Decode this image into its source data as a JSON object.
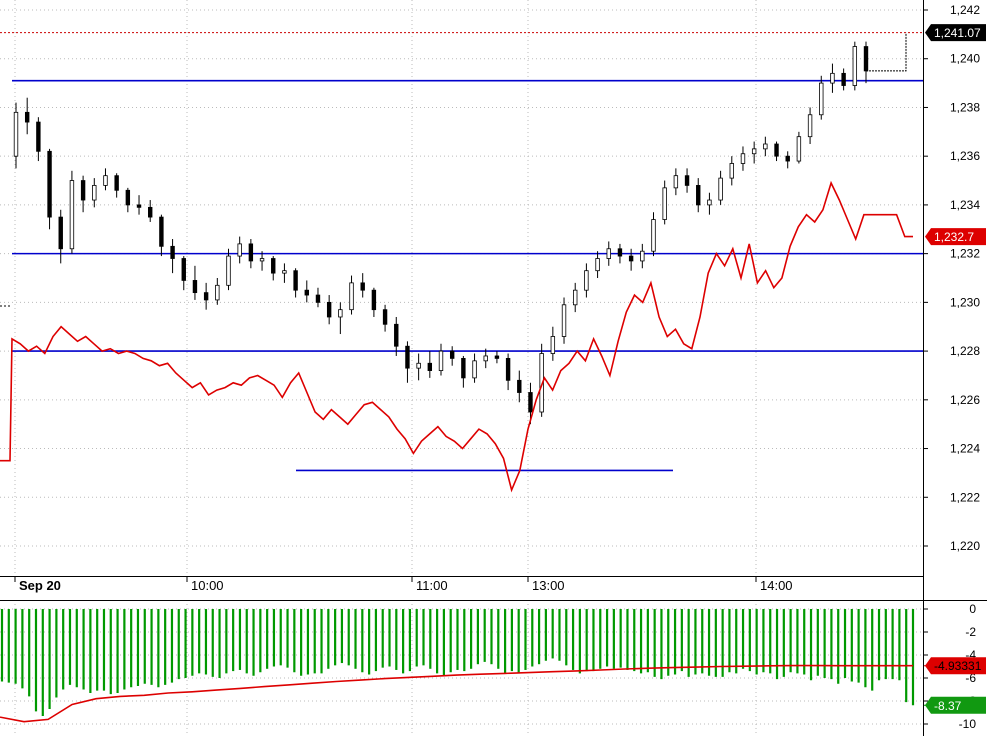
{
  "chart_data": [
    {
      "type": "candlestick",
      "x_ticks": [
        "Sep 20",
        "10:00",
        "11:00",
        "13:00",
        "14:00"
      ],
      "y_ticks": [
        "1,220",
        "1,222",
        "1,224",
        "1,226",
        "1,228",
        "1,230",
        "1,232",
        "1,234",
        "1,236",
        "1,238",
        "1,240",
        "1,242"
      ],
      "ylim": [
        1218.8,
        1243.0
      ],
      "grid": true,
      "price_labels": {
        "last": "1,241.07",
        "line": "1,232.7"
      },
      "series": [
        {
          "kind": "candles",
          "color": "#000000",
          "ohlc": [
            [
              1236.0,
              1238.2,
              1235.5,
              1237.8
            ],
            [
              1237.8,
              1238.4,
              1236.9,
              1237.4
            ],
            [
              1237.4,
              1237.6,
              1235.8,
              1236.2
            ],
            [
              1236.2,
              1236.3,
              1233.0,
              1233.5
            ],
            [
              1233.5,
              1233.8,
              1231.6,
              1232.2
            ],
            [
              1232.2,
              1235.4,
              1232.0,
              1235.0
            ],
            [
              1235.0,
              1235.2,
              1233.7,
              1234.2
            ],
            [
              1234.2,
              1235.1,
              1233.9,
              1234.8
            ],
            [
              1234.8,
              1235.5,
              1234.6,
              1235.2
            ],
            [
              1235.2,
              1235.3,
              1234.3,
              1234.6
            ],
            [
              1234.6,
              1234.7,
              1233.7,
              1234.0
            ],
            [
              1234.0,
              1234.4,
              1233.6,
              1233.9
            ],
            [
              1233.9,
              1234.2,
              1233.3,
              1233.5
            ],
            [
              1233.5,
              1233.6,
              1231.9,
              1232.3
            ],
            [
              1232.3,
              1232.6,
              1231.2,
              1231.8
            ],
            [
              1231.8,
              1231.9,
              1230.5,
              1230.9
            ],
            [
              1230.9,
              1231.5,
              1230.1,
              1230.4
            ],
            [
              1230.4,
              1230.8,
              1229.7,
              1230.1
            ],
            [
              1230.1,
              1231.0,
              1229.9,
              1230.7
            ],
            [
              1230.7,
              1232.2,
              1230.5,
              1231.9
            ],
            [
              1231.9,
              1232.7,
              1231.6,
              1232.4
            ],
            [
              1232.4,
              1232.6,
              1231.4,
              1231.7
            ],
            [
              1231.7,
              1232.1,
              1231.3,
              1231.8
            ],
            [
              1231.8,
              1231.9,
              1230.9,
              1231.2
            ],
            [
              1231.2,
              1231.6,
              1230.8,
              1231.3
            ],
            [
              1231.3,
              1231.4,
              1230.2,
              1230.5
            ],
            [
              1230.5,
              1230.9,
              1230.0,
              1230.3
            ],
            [
              1230.3,
              1230.6,
              1229.8,
              1230.0
            ],
            [
              1230.0,
              1230.3,
              1229.1,
              1229.4
            ],
            [
              1229.4,
              1230.0,
              1228.7,
              1229.7
            ],
            [
              1229.7,
              1231.1,
              1229.5,
              1230.8
            ],
            [
              1230.8,
              1231.2,
              1230.2,
              1230.5
            ],
            [
              1230.5,
              1230.6,
              1229.4,
              1229.7
            ],
            [
              1229.7,
              1229.9,
              1228.8,
              1229.1
            ],
            [
              1229.1,
              1229.4,
              1227.8,
              1228.2
            ],
            [
              1228.2,
              1228.4,
              1226.7,
              1227.3
            ],
            [
              1227.3,
              1227.9,
              1226.8,
              1227.5
            ],
            [
              1227.5,
              1228.0,
              1226.9,
              1227.2
            ],
            [
              1227.2,
              1228.3,
              1227.0,
              1228.0
            ],
            [
              1228.0,
              1228.2,
              1227.4,
              1227.7
            ],
            [
              1227.7,
              1227.8,
              1226.5,
              1226.9
            ],
            [
              1226.9,
              1227.9,
              1226.7,
              1227.6
            ],
            [
              1227.6,
              1228.1,
              1227.3,
              1227.8
            ],
            [
              1227.8,
              1228.0,
              1227.5,
              1227.7
            ],
            [
              1227.7,
              1227.9,
              1226.4,
              1226.8
            ],
            [
              1226.8,
              1227.2,
              1225.9,
              1226.3
            ],
            [
              1226.3,
              1226.7,
              1225.0,
              1225.5
            ],
            [
              1225.5,
              1228.3,
              1225.3,
              1227.9
            ],
            [
              1227.9,
              1229.0,
              1227.6,
              1228.6
            ],
            [
              1228.6,
              1230.2,
              1228.3,
              1229.9
            ],
            [
              1229.9,
              1230.8,
              1229.6,
              1230.5
            ],
            [
              1230.5,
              1231.6,
              1230.2,
              1231.3
            ],
            [
              1231.3,
              1232.1,
              1231.0,
              1231.8
            ],
            [
              1231.8,
              1232.5,
              1231.5,
              1232.2
            ],
            [
              1232.2,
              1232.4,
              1231.6,
              1231.9
            ],
            [
              1231.9,
              1232.2,
              1231.3,
              1231.7
            ],
            [
              1231.7,
              1232.4,
              1231.4,
              1232.1
            ],
            [
              1232.1,
              1233.7,
              1231.9,
              1233.4
            ],
            [
              1233.4,
              1235.0,
              1233.2,
              1234.7
            ],
            [
              1234.7,
              1235.5,
              1234.4,
              1235.2
            ],
            [
              1235.2,
              1235.5,
              1234.5,
              1234.8
            ],
            [
              1234.8,
              1235.1,
              1233.7,
              1234.0
            ],
            [
              1234.0,
              1234.5,
              1233.6,
              1234.2
            ],
            [
              1234.2,
              1235.4,
              1234.0,
              1235.1
            ],
            [
              1235.1,
              1236.0,
              1234.8,
              1235.7
            ],
            [
              1235.7,
              1236.4,
              1235.4,
              1236.1
            ],
            [
              1236.1,
              1236.6,
              1235.7,
              1236.3
            ],
            [
              1236.3,
              1236.8,
              1236.0,
              1236.5
            ],
            [
              1236.5,
              1236.6,
              1235.8,
              1236.0
            ],
            [
              1236.0,
              1236.2,
              1235.5,
              1235.8
            ],
            [
              1235.8,
              1237.0,
              1235.7,
              1236.8
            ],
            [
              1236.8,
              1238.0,
              1236.5,
              1237.7
            ],
            [
              1237.7,
              1239.3,
              1237.5,
              1239.0
            ],
            [
              1239.0,
              1239.8,
              1238.6,
              1239.4
            ],
            [
              1239.4,
              1239.6,
              1238.7,
              1238.9
            ],
            [
              1238.9,
              1240.7,
              1238.7,
              1240.5
            ],
            [
              1240.5,
              1240.7,
              1239.0,
              1239.5
            ]
          ]
        },
        {
          "kind": "line",
          "color": "#dd0000",
          "values": [
            1223.5,
            1228.5,
            1228.3,
            1228.0,
            1228.2,
            1227.9,
            1228.6,
            1229.0,
            1228.7,
            1228.4,
            1228.6,
            1228.3,
            1228.0,
            1228.1,
            1227.9,
            1228.0,
            1227.9,
            1227.7,
            1227.6,
            1227.4,
            1227.5,
            1227.1,
            1226.8,
            1226.5,
            1226.7,
            1226.2,
            1226.4,
            1226.5,
            1226.7,
            1226.6,
            1226.9,
            1227.0,
            1226.8,
            1226.6,
            1226.1,
            1226.7,
            1227.1,
            1226.3,
            1225.5,
            1225.2,
            1225.6,
            1225.3,
            1225.0,
            1225.4,
            1225.8,
            1225.9,
            1225.6,
            1225.3,
            1224.8,
            1224.4,
            1223.8,
            1224.3,
            1224.6,
            1224.9,
            1224.5,
            1224.3,
            1224.0,
            1224.4,
            1224.8,
            1224.6,
            1224.2,
            1223.6,
            1222.3,
            1223.1,
            1224.8,
            1226.0,
            1226.9,
            1226.4,
            1227.2,
            1227.5,
            1228.0,
            1227.6,
            1228.5,
            1227.8,
            1227.0,
            1228.4,
            1229.6,
            1230.3,
            1230.0,
            1230.8,
            1229.4,
            1228.6,
            1228.9,
            1228.3,
            1228.1,
            1229.4,
            1231.2,
            1232.0,
            1231.5,
            1232.2,
            1231.0,
            1232.4,
            1230.8,
            1231.3,
            1230.6,
            1231.0,
            1232.3,
            1233.1,
            1233.6,
            1233.3,
            1233.8,
            1234.9,
            1234.2,
            1233.4,
            1232.6,
            1233.6,
            1233.6,
            1233.6,
            1233.6,
            1233.6,
            1232.7,
            1232.7
          ]
        },
        {
          "kind": "step",
          "color": "#000000",
          "values": [
            1239.5,
            1239.5,
            1241.07
          ]
        }
      ],
      "horizontal_lines": [
        {
          "value": 1239.1,
          "color": "#0000cc"
        },
        {
          "value": 1232.0,
          "color": "#0000cc"
        },
        {
          "value": 1228.0,
          "color": "#0000cc"
        },
        {
          "value": 1223.1,
          "color": "#0000cc"
        },
        {
          "value": 1241.07,
          "color": "#cc0000"
        }
      ]
    },
    {
      "type": "bar",
      "y_ticks": [
        "0",
        "-2",
        "-4",
        "-6",
        "-8",
        "-10"
      ],
      "ylim": [
        -10.6,
        0.7
      ],
      "grid": true,
      "value_labels": {
        "line": "-4.93331",
        "last": "-8.37"
      },
      "series": [
        {
          "kind": "bars",
          "color": "#009900",
          "values": [
            -6.3,
            -6.4,
            -6.5,
            -6.9,
            -7.6,
            -8.9,
            -9.3,
            -8.7,
            -7.7,
            -7.0,
            -6.6,
            -6.8,
            -7.0,
            -7.3,
            -7.1,
            -7.1,
            -7.4,
            -7.3,
            -7.0,
            -6.8,
            -6.7,
            -6.5,
            -6.6,
            -6.8,
            -6.6,
            -6.4,
            -6.1,
            -6.0,
            -5.8,
            -5.6,
            -5.7,
            -5.9,
            -6.0,
            -5.6,
            -5.4,
            -5.3,
            -5.6,
            -5.8,
            -5.5,
            -5.2,
            -5.0,
            -4.9,
            -5.1,
            -5.5,
            -5.8,
            -5.7,
            -5.6,
            -5.6,
            -5.2,
            -4.9,
            -4.7,
            -4.9,
            -5.2,
            -5.5,
            -5.7,
            -5.4,
            -5.1,
            -5.0,
            -5.3,
            -5.6,
            -5.4,
            -5.0,
            -4.9,
            -5.2,
            -5.6,
            -5.8,
            -5.5,
            -5.3,
            -5.4,
            -5.2,
            -4.8,
            -4.6,
            -4.8,
            -5.2,
            -5.6,
            -5.4,
            -5.6,
            -5.3,
            -5.0,
            -4.8,
            -4.5,
            -4.3,
            -4.5,
            -4.9,
            -5.3,
            -5.6,
            -5.4,
            -5.4,
            -5.2,
            -5.0,
            -5.2,
            -5.1,
            -5.3,
            -5.4,
            -5.6,
            -5.5,
            -5.9,
            -6.1,
            -5.8,
            -5.7,
            -5.4,
            -5.9,
            -5.7,
            -5.6,
            -5.8,
            -5.9,
            -5.9,
            -5.5,
            -5.6,
            -5.2,
            -5.4,
            -5.7,
            -5.5,
            -5.6,
            -6.1,
            -5.9,
            -5.5,
            -5.6,
            -5.7,
            -6.2,
            -5.8,
            -6.0,
            -6.1,
            -6.5,
            -6.0,
            -6.3,
            -6.4,
            -6.8,
            -7.1,
            -6.2,
            -6.1,
            -6.1,
            -6.2,
            -8.1,
            -8.37
          ]
        },
        {
          "kind": "line",
          "color": "#dd0000",
          "values": [
            -9.4,
            -9.8,
            -9.6,
            -8.3,
            -7.8,
            -7.6,
            -7.5,
            -7.3,
            -7.2,
            -7.05,
            -6.9,
            -6.75,
            -6.6,
            -6.45,
            -6.3,
            -6.18,
            -6.05,
            -5.95,
            -5.85,
            -5.75,
            -5.67,
            -5.6,
            -5.53,
            -5.45,
            -5.38,
            -5.3,
            -5.22,
            -5.15,
            -5.1,
            -5.05,
            -5.0,
            -4.97,
            -4.94,
            -4.92,
            -4.92,
            -4.93,
            -4.93,
            -4.93,
            -4.93
          ]
        }
      ],
      "horizontal_lines": [
        {
          "value": -4.93331,
          "color": "#cc0000"
        },
        {
          "value": -8.37,
          "color": "#009900"
        }
      ]
    }
  ]
}
